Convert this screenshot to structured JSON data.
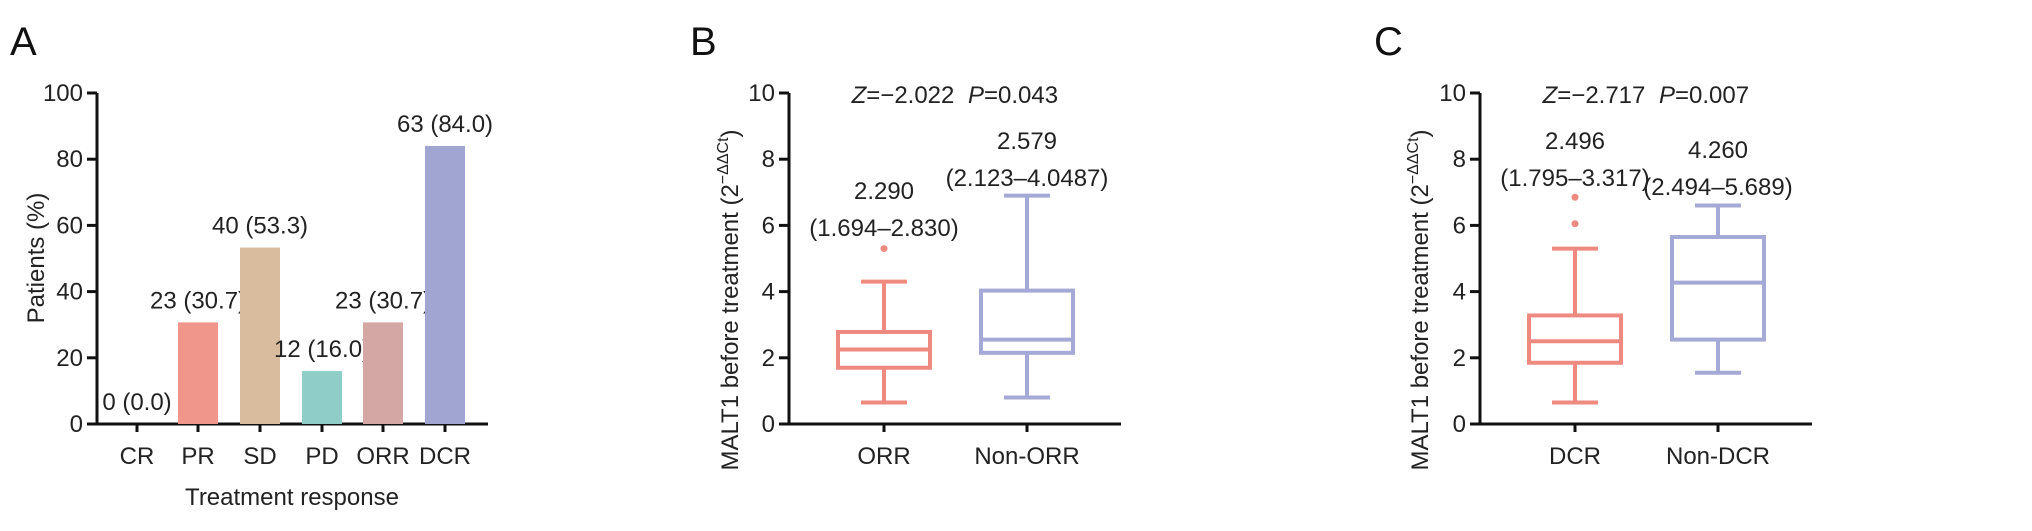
{
  "colors": {
    "axis": "#111111",
    "box_a": "#ee8a80",
    "box_b": "#a5a9d6"
  },
  "chart_data": [
    {
      "panel": "A",
      "type": "bar",
      "xlabel": "Treatment response",
      "ylabel": "Patients (%)",
      "ylim": [
        0,
        100
      ],
      "yticks": [
        "0",
        "20",
        "40",
        "60",
        "80",
        "100"
      ],
      "categories": [
        "CR",
        "PR",
        "SD",
        "PD",
        "ORR",
        "DCR"
      ],
      "values": [
        0.0,
        30.7,
        53.3,
        16.0,
        30.7,
        84.0
      ],
      "counts": [
        0,
        23,
        40,
        12,
        23,
        63
      ],
      "data_labels": [
        "0 (0.0)",
        "23 (30.7)",
        "40 (53.3)",
        "12 (16.0)",
        "23 (30.7)",
        "63 (84.0)"
      ],
      "bar_colors": [
        "#ffffff",
        "#f0968a",
        "#d9bc9e",
        "#8ecdc8",
        "#d4a7a5",
        "#a0a6d1"
      ]
    },
    {
      "panel": "B",
      "type": "box",
      "ylabel_main": "MALT1 before treatment (2",
      "ylabel_sup": "−ΔΔCt",
      "ylabel_close": ")",
      "ylim": [
        0,
        10
      ],
      "yticks": [
        "0",
        "2",
        "4",
        "6",
        "8",
        "10"
      ],
      "stat_z": "Z",
      "stat_z_value": "=−2.022",
      "stat_p": "P",
      "stat_p_value": "=0.043",
      "groups": [
        {
          "name": "ORR",
          "min": 0.65,
          "q1": 1.7,
          "median": 2.25,
          "q3": 2.78,
          "max": 4.3,
          "outliers": [
            5.3
          ],
          "median_label": "2.290",
          "iqr_label": "(1.694–2.830)"
        },
        {
          "name": "Non-ORR",
          "min": 0.8,
          "q1": 2.15,
          "median": 2.55,
          "q3": 4.03,
          "max": 6.9,
          "outliers": [],
          "median_label": "2.579",
          "iqr_label": "(2.123–4.0487)"
        }
      ]
    },
    {
      "panel": "C",
      "type": "box",
      "ylabel_main": "MALT1 before treatment (2",
      "ylabel_sup": "−ΔΔCt",
      "ylabel_close": ")",
      "ylim": [
        0,
        10
      ],
      "yticks": [
        "0",
        "2",
        "4",
        "6",
        "8",
        "10"
      ],
      "stat_z": "Z",
      "stat_z_value": "=−2.717",
      "stat_p": "P",
      "stat_p_value": "=0.007",
      "groups": [
        {
          "name": "DCR",
          "min": 0.65,
          "q1": 1.85,
          "median": 2.5,
          "q3": 3.28,
          "max": 5.3,
          "outliers": [
            6.05,
            6.85
          ],
          "median_label": "2.496",
          "iqr_label": "(1.795–3.317)"
        },
        {
          "name": "Non-DCR",
          "min": 1.55,
          "q1": 2.55,
          "median": 4.27,
          "q3": 5.65,
          "max": 6.6,
          "outliers": [],
          "median_label": "4.260",
          "iqr_label": "(2.494–5.689)"
        }
      ]
    }
  ]
}
